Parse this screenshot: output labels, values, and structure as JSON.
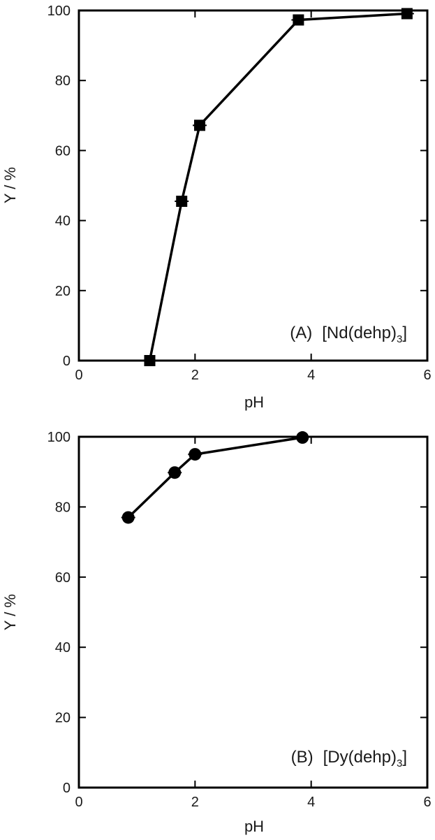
{
  "chart_data": [
    {
      "type": "line",
      "panel_label": "(A)",
      "compound_prefix": "[Nd(dehp)",
      "compound_subscript": "3",
      "compound_suffix": "]",
      "xlabel": "pH",
      "ylabel": "Y / %",
      "xlim": [
        0,
        6
      ],
      "ylim": [
        0,
        100
      ],
      "xticks": [
        "0",
        "2",
        "4",
        "6"
      ],
      "yticks": [
        "0",
        "20",
        "40",
        "60",
        "80",
        "100"
      ],
      "marker": "square",
      "series": [
        {
          "x": [
            1.22,
            1.77,
            2.08,
            3.78,
            5.65
          ],
          "y": [
            0,
            45.5,
            67.2,
            97.3,
            99.1
          ],
          "x_error": [
            0.08,
            0.12,
            0.12,
            0.12,
            0.12
          ]
        }
      ]
    },
    {
      "type": "line",
      "panel_label": "(B)",
      "compound_prefix": "[Dy(dehp)",
      "compound_subscript": "3",
      "compound_suffix": "]",
      "xlabel": "pH",
      "ylabel": "Y / %",
      "xlim": [
        0,
        6
      ],
      "ylim": [
        0,
        100
      ],
      "xticks": [
        "0",
        "2",
        "4",
        "6"
      ],
      "yticks": [
        "0",
        "20",
        "40",
        "60",
        "80",
        "100"
      ],
      "marker": "circle",
      "series": [
        {
          "x": [
            0.85,
            1.65,
            2.0,
            3.85
          ],
          "y": [
            77.0,
            89.8,
            95.0,
            99.8
          ],
          "x_error": [
            0.12,
            0.12,
            0.12,
            0.08
          ]
        }
      ]
    }
  ]
}
